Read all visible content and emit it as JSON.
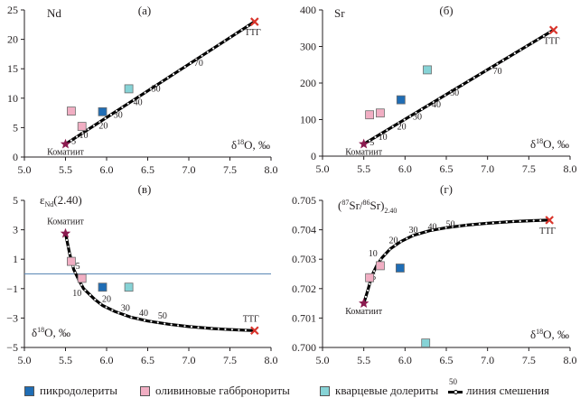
{
  "legend": {
    "items": [
      {
        "label": "пикродолериты",
        "color": "#1f6db5"
      },
      {
        "label": "оливиновые габбронориты",
        "color": "#f1aec3"
      },
      {
        "label": "кварцевые долериты",
        "color": "#86d3d6"
      }
    ],
    "mixing_line": {
      "label": "линия смешения",
      "sample_number": "50"
    }
  },
  "colors": {
    "komatiite": "#8b1a4f",
    "ttg": "#d9342b",
    "reference_line": "#5b87b5",
    "mixing_line": "#000000"
  },
  "chart_data": [
    {
      "type": "scatter",
      "panel": "(а)",
      "panel_label": "(a)",
      "ylabel": "Nd",
      "xlabel": "δ18O, ‰",
      "xlim": [
        5.0,
        8.0
      ],
      "ylim": [
        0,
        25
      ],
      "xticks": [
        "5.0",
        "5.5",
        "6.0",
        "6.5",
        "7.0",
        "7.5",
        "8.0"
      ],
      "yticks": [
        "0",
        "5",
        "10",
        "15",
        "20",
        "25"
      ],
      "series": [
        {
          "name": "пикродолериты",
          "points": [
            [
              5.95,
              7.7
            ]
          ]
        },
        {
          "name": "оливиновые габбронориты",
          "points": [
            [
              5.57,
              7.8
            ],
            [
              5.7,
              5.2
            ]
          ]
        },
        {
          "name": "кварцевые долериты",
          "points": [
            [
              6.27,
              11.6
            ]
          ]
        }
      ],
      "endmembers": [
        {
          "name": "Коматиит",
          "x": 5.5,
          "y": 2.2
        },
        {
          "name": "ТТГ",
          "x": 7.8,
          "y": 23.0
        }
      ],
      "mixing_curve": [
        [
          5.5,
          2.2
        ],
        [
          7.8,
          23.0
        ]
      ],
      "mixing_labels": [
        {
          "text": "5",
          "x": 5.6,
          "y": 2.2
        },
        {
          "text": "10",
          "x": 5.72,
          "y": 3.2
        },
        {
          "text": "20",
          "x": 5.96,
          "y": 4.8
        },
        {
          "text": "30",
          "x": 6.14,
          "y": 6.7
        },
        {
          "text": "40",
          "x": 6.38,
          "y": 8.8
        },
        {
          "text": "50",
          "x": 6.6,
          "y": 11.1
        },
        {
          "text": "70",
          "x": 7.12,
          "y": 15.5
        }
      ]
    },
    {
      "type": "scatter",
      "panel": "(б)",
      "panel_label": "(б)",
      "ylabel": "Sr",
      "xlabel": "δ18O, ‰",
      "xlim": [
        5.0,
        8.0
      ],
      "ylim": [
        0,
        400
      ],
      "xticks": [
        "5.0",
        "5.5",
        "6.0",
        "6.5",
        "7.0",
        "7.5",
        "8.0"
      ],
      "yticks": [
        "0",
        "100",
        "200",
        "300",
        "400"
      ],
      "series": [
        {
          "name": "пикродолериты",
          "points": [
            [
              5.95,
              154
            ]
          ]
        },
        {
          "name": "оливиновые габбронориты",
          "points": [
            [
              5.57,
              113
            ],
            [
              5.7,
              118
            ]
          ]
        },
        {
          "name": "кварцевые долериты",
          "points": [
            [
              6.27,
              236
            ]
          ]
        }
      ],
      "endmembers": [
        {
          "name": "Коматиит",
          "x": 5.5,
          "y": 33
        },
        {
          "name": "ТТГ",
          "x": 7.8,
          "y": 345
        }
      ],
      "mixing_curve": [
        [
          5.5,
          33
        ],
        [
          7.8,
          345
        ]
      ],
      "mixing_labels": [
        {
          "text": "5",
          "x": 5.6,
          "y": 30
        },
        {
          "text": "10",
          "x": 5.73,
          "y": 45
        },
        {
          "text": "20",
          "x": 5.96,
          "y": 73
        },
        {
          "text": "30",
          "x": 6.15,
          "y": 100
        },
        {
          "text": "40",
          "x": 6.38,
          "y": 133
        },
        {
          "text": "50",
          "x": 6.6,
          "y": 165
        },
        {
          "text": "70",
          "x": 7.12,
          "y": 225
        }
      ]
    },
    {
      "type": "scatter",
      "panel": "(в)",
      "panel_label": "(в)",
      "ylabel": "εNd(2.40)",
      "xlabel": "δ18O, ‰",
      "xlim": [
        5.0,
        8.0
      ],
      "ylim": [
        -5,
        5
      ],
      "xticks": [
        "5.0",
        "5.5",
        "6.0",
        "6.5",
        "7.0",
        "7.5",
        "8.0"
      ],
      "yticks": [
        "-5",
        "-3",
        "-1",
        "1",
        "3",
        "5"
      ],
      "reference_line_y": 0,
      "series": [
        {
          "name": "пикродолериты",
          "points": [
            [
              5.95,
              -0.9
            ]
          ]
        },
        {
          "name": "оливиновые габбронориты",
          "points": [
            [
              5.57,
              0.85
            ],
            [
              5.7,
              -0.3
            ]
          ]
        },
        {
          "name": "кварцевые долериты",
          "points": [
            [
              6.27,
              -0.9
            ]
          ]
        }
      ],
      "endmembers": [
        {
          "name": "Коматиит",
          "x": 5.5,
          "y": 2.75
        },
        {
          "name": "ТТГ",
          "x": 7.8,
          "y": -3.85
        }
      ],
      "mixing_curve": [
        [
          5.5,
          2.75
        ],
        [
          5.55,
          1.4
        ],
        [
          5.6,
          0.3
        ],
        [
          5.66,
          -0.4
        ],
        [
          5.72,
          -1.0
        ],
        [
          5.85,
          -1.7
        ],
        [
          5.95,
          -2.15
        ],
        [
          6.1,
          -2.55
        ],
        [
          6.3,
          -2.95
        ],
        [
          6.5,
          -3.2
        ],
        [
          6.75,
          -3.42
        ],
        [
          7.0,
          -3.58
        ],
        [
          7.3,
          -3.72
        ],
        [
          7.55,
          -3.8
        ],
        [
          7.8,
          -3.85
        ]
      ],
      "mixing_labels": [
        {
          "text": "5",
          "x": 5.65,
          "y": 0.35
        },
        {
          "text": "10",
          "x": 5.64,
          "y": -1.5
        },
        {
          "text": "20",
          "x": 6.0,
          "y": -1.9
        },
        {
          "text": "30",
          "x": 6.23,
          "y": -2.5
        },
        {
          "text": "40",
          "x": 6.45,
          "y": -2.85
        },
        {
          "text": "50",
          "x": 6.68,
          "y": -3.05
        }
      ]
    },
    {
      "type": "scatter",
      "panel": "(г)",
      "panel_label": "(г)",
      "ylabel": "(87Sr/86Sr)2.40",
      "xlabel": "δ18O, ‰",
      "xlim": [
        5.0,
        8.0
      ],
      "ylim": [
        0.7,
        0.705
      ],
      "xticks": [
        "5.0",
        "5.5",
        "6.0",
        "6.5",
        "7.0",
        "7.5",
        "8.0"
      ],
      "yticks": [
        "0.700",
        "0.701",
        "0.702",
        "0.703",
        "0.704",
        "0.705"
      ],
      "series": [
        {
          "name": "пикродолериты",
          "points": [
            [
              5.94,
              0.7027
            ]
          ]
        },
        {
          "name": "оливиновые габбронориты",
          "points": [
            [
              5.57,
              0.70237
            ],
            [
              5.7,
              0.70278
            ]
          ]
        },
        {
          "name": "кварцевые долериты",
          "points": [
            [
              6.25,
              0.70015
            ]
          ]
        }
      ],
      "endmembers": [
        {
          "name": "Коматиит",
          "x": 5.5,
          "y": 0.7015
        },
        {
          "name": "ТТГ",
          "x": 7.75,
          "y": 0.70433
        }
      ],
      "mixing_curve": [
        [
          5.5,
          0.7015
        ],
        [
          5.55,
          0.70195
        ],
        [
          5.6,
          0.70245
        ],
        [
          5.66,
          0.7028
        ],
        [
          5.72,
          0.70305
        ],
        [
          5.82,
          0.70335
        ],
        [
          5.95,
          0.7036
        ],
        [
          6.1,
          0.70381
        ],
        [
          6.3,
          0.70397
        ],
        [
          6.5,
          0.70407
        ],
        [
          6.75,
          0.70416
        ],
        [
          7.0,
          0.70422
        ],
        [
          7.3,
          0.70428
        ],
        [
          7.55,
          0.70431
        ],
        [
          7.75,
          0.70433
        ]
      ],
      "mixing_labels": [
        {
          "text": "5",
          "x": 5.62,
          "y": 0.7023
        },
        {
          "text": "10",
          "x": 5.61,
          "y": 0.7031
        },
        {
          "text": "20",
          "x": 5.86,
          "y": 0.70355
        },
        {
          "text": "30",
          "x": 6.1,
          "y": 0.7039
        },
        {
          "text": "40",
          "x": 6.33,
          "y": 0.704
        },
        {
          "text": "50",
          "x": 6.55,
          "y": 0.7041
        }
      ]
    }
  ]
}
